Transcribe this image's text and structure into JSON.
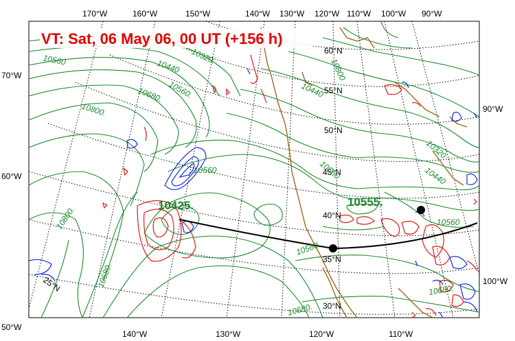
{
  "title": "VT:  Sat, 06 May 06, 00 UT (+156 h)",
  "colors": {
    "title": "#e00000",
    "height_contour": "#1a8a2a",
    "coast": "#a06820",
    "positive": "#e01818",
    "negative": "#1a2ae0",
    "track": "#000000"
  },
  "top_lon_labels": [
    "170°W",
    "160°W",
    "150°W",
    "140°W",
    "130°W",
    "120°W",
    "110°W",
    "100°W",
    "90°W"
  ],
  "bottom_lon_labels": [
    "140°W",
    "130°W",
    "120°W",
    "110°W"
  ],
  "left_labels": [
    "70°W",
    "60°W",
    "50°W"
  ],
  "right_labels": [
    "90°W",
    "100°W"
  ],
  "lat_labels": [
    "60°N",
    "55°N",
    "50°N",
    "45°N",
    "40°N",
    "35°N",
    "30°N",
    "25°N"
  ],
  "contour_labels": [
    "10560",
    "10440",
    "10320.",
    "10680.",
    "10800.",
    "10560.",
    "10560",
    "10800.",
    "10680.",
    "10560",
    "10800",
    "10440",
    "10680.",
    "10560.",
    "10320",
    "10440",
    "10560",
    "10680."
  ],
  "centers": {
    "low": "10425.",
    "high": "10555."
  }
}
